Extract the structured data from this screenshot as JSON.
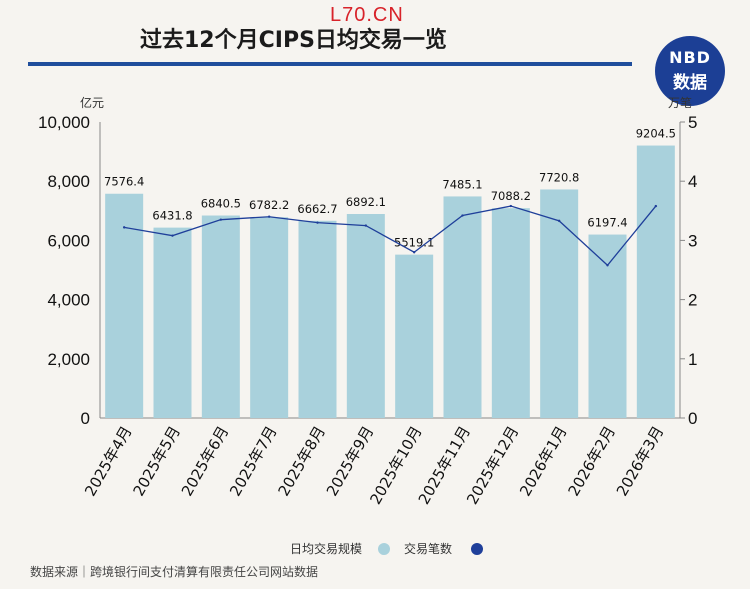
{
  "watermark_top": "L70.CN",
  "title": "过去12个月CIPS日均交易一览",
  "logo": {
    "line1": "NBD",
    "line2": "数据"
  },
  "source": "数据来源｜跨境银行间支付清算有限责任公司网站数据",
  "chart_data": {
    "type": "bar",
    "title": "过去12个月CIPS日均交易一览",
    "categories": [
      "2025年4月",
      "2025年5月",
      "2025年6月",
      "2025年7月",
      "2025年8月",
      "2025年9月",
      "2025年10月",
      "2025年11月",
      "2025年12月",
      "2026年1月",
      "2026年2月",
      "2026年3月"
    ],
    "series": [
      {
        "name": "日均交易规模",
        "type": "bar",
        "axis": "left",
        "color": "#a9d1dc",
        "values": [
          7576.4,
          6431.8,
          6840.5,
          6782.2,
          6662.7,
          6892.1,
          5519.1,
          7485.1,
          7088.2,
          7720.8,
          6197.4,
          9204.5
        ],
        "labels": [
          "7576.4",
          "6431.8",
          "6840.5",
          "6782.2",
          "6662.7",
          "6892.1",
          "5519.1",
          "7485.1",
          "7088.2",
          "7720.8",
          "6197.4",
          "9204.5"
        ]
      },
      {
        "name": "交易笔数",
        "type": "line",
        "axis": "right",
        "color": "#1f3f9a",
        "values": [
          3.22,
          3.08,
          3.35,
          3.4,
          3.3,
          3.25,
          2.8,
          3.42,
          3.58,
          3.33,
          2.58,
          3.58
        ]
      }
    ],
    "y_left": {
      "unit": "亿元",
      "min": 0,
      "max": 10000,
      "ticks": [
        0,
        2000,
        4000,
        6000,
        8000,
        10000
      ],
      "tick_labels": [
        "0",
        "2,000",
        "4,000",
        "6,000",
        "8,000",
        "10,000"
      ]
    },
    "y_right": {
      "unit": "万笔",
      "min": 0,
      "max": 5,
      "ticks": [
        0,
        1,
        2,
        3,
        4,
        5
      ],
      "tick_labels": [
        "0",
        "1",
        "2",
        "3",
        "4",
        "5"
      ]
    },
    "grid": false,
    "legend_position": "bottom-right"
  }
}
